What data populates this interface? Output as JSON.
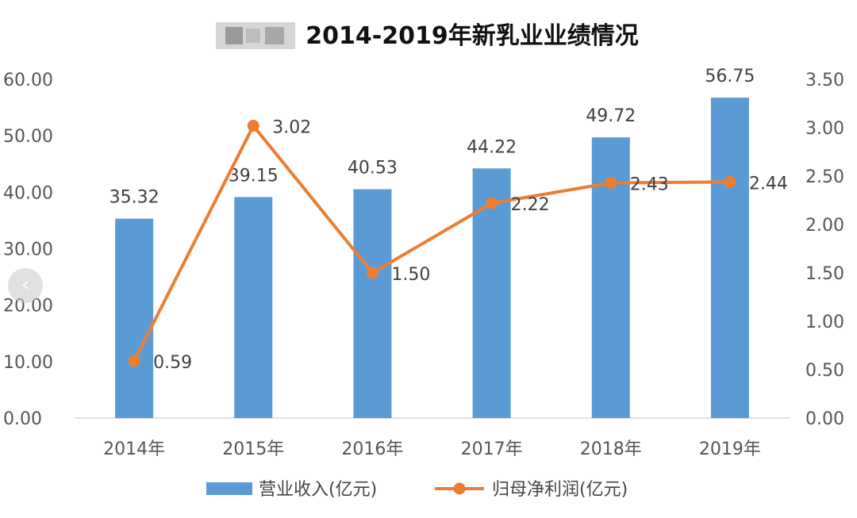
{
  "chart_data": {
    "type": "bar",
    "title": "2014-2019年新乳业业绩情况",
    "categories": [
      "2014年",
      "2015年",
      "2016年",
      "2017年",
      "2018年",
      "2019年"
    ],
    "series": [
      {
        "name": "营业收入(亿元)",
        "type": "bar",
        "axis": "left",
        "color": "#5B9BD5",
        "values": [
          35.32,
          39.15,
          40.53,
          44.22,
          49.72,
          56.75
        ],
        "labels": [
          "35.32",
          "39.15",
          "40.53",
          "44.22",
          "49.72",
          "56.75"
        ]
      },
      {
        "name": "归母净利润(亿元)",
        "type": "line",
        "axis": "right",
        "color": "#ED7D31",
        "values": [
          0.59,
          3.02,
          1.5,
          2.22,
          2.43,
          2.44
        ],
        "labels": [
          "0.59",
          "3.02",
          "1.50",
          "2.22",
          "2.43",
          "2.44"
        ]
      }
    ],
    "y_left": {
      "ylim": [
        0,
        60
      ],
      "ticks": [
        "0.00",
        "10.00",
        "20.00",
        "30.00",
        "40.00",
        "50.00",
        "60.00"
      ]
    },
    "y_right": {
      "ylim": [
        0,
        3.5
      ],
      "ticks": [
        "0.00",
        "0.50",
        "1.00",
        "1.50",
        "2.00",
        "2.50",
        "3.00",
        "3.50"
      ]
    },
    "grid": false,
    "legend": "bottom"
  },
  "nav": {
    "prev_icon": "chevron-left-icon",
    "prev_glyph": "‹"
  }
}
